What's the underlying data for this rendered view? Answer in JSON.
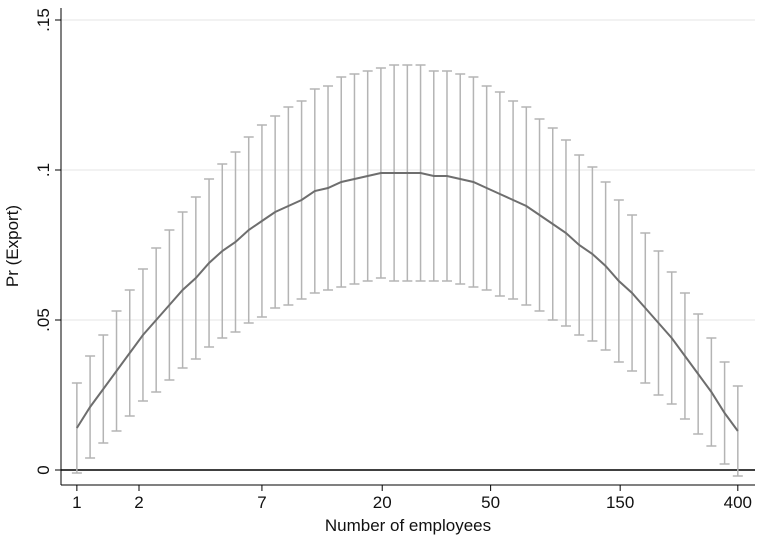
{
  "chart_data": {
    "type": "errorbar-line",
    "xlabel": "Number of employees",
    "ylabel": "Pr (Export)",
    "x": [
      0,
      1,
      2,
      3,
      4,
      5,
      6,
      7,
      8,
      9,
      10,
      11,
      12,
      13,
      14,
      15,
      16,
      17,
      18,
      19,
      20,
      21,
      22,
      23,
      24,
      25,
      26,
      27,
      28,
      29,
      30,
      31,
      32,
      33,
      34,
      35,
      36,
      37,
      38,
      39,
      40,
      41,
      42,
      43,
      44,
      45,
      46,
      47,
      48,
      49,
      50
    ],
    "values": [
      0.014,
      0.021,
      0.027,
      0.033,
      0.039,
      0.045,
      0.05,
      0.055,
      0.06,
      0.064,
      0.069,
      0.073,
      0.076,
      0.08,
      0.083,
      0.086,
      0.088,
      0.09,
      0.093,
      0.094,
      0.096,
      0.097,
      0.098,
      0.099,
      0.099,
      0.099,
      0.099,
      0.098,
      0.098,
      0.097,
      0.096,
      0.094,
      0.092,
      0.09,
      0.088,
      0.085,
      0.082,
      0.079,
      0.075,
      0.072,
      0.068,
      0.063,
      0.059,
      0.054,
      0.049,
      0.044,
      0.038,
      0.032,
      0.026,
      0.019,
      0.013
    ],
    "errors": [
      0.015,
      0.017,
      0.018,
      0.02,
      0.021,
      0.022,
      0.024,
      0.025,
      0.026,
      0.027,
      0.028,
      0.029,
      0.03,
      0.031,
      0.032,
      0.032,
      0.033,
      0.033,
      0.034,
      0.034,
      0.035,
      0.035,
      0.035,
      0.035,
      0.036,
      0.036,
      0.036,
      0.035,
      0.035,
      0.035,
      0.035,
      0.034,
      0.034,
      0.033,
      0.033,
      0.032,
      0.032,
      0.031,
      0.03,
      0.029,
      0.028,
      0.027,
      0.026,
      0.025,
      0.024,
      0.022,
      0.021,
      0.02,
      0.018,
      0.017,
      0.015
    ],
    "line_color": "#6e6e6e",
    "bar_color": "#b4b4b4",
    "xlim": [
      -1.2,
      51.3
    ],
    "xticks": [
      {
        "value": 0,
        "label": "1"
      },
      {
        "value": 4.7,
        "label": "2"
      },
      {
        "value": 14,
        "label": "7"
      },
      {
        "value": 23.1,
        "label": "20"
      },
      {
        "value": 31.3,
        "label": "50"
      },
      {
        "value": 41.1,
        "label": "150"
      },
      {
        "value": 50,
        "label": "400"
      }
    ],
    "ylim": [
      -0.005,
      0.154
    ],
    "yticks": [
      0,
      {
        "value": 0.05,
        "label": ".05"
      },
      {
        "value": 0.1,
        "label": ".1"
      },
      {
        "value": 0.15,
        "label": ".15"
      }
    ],
    "grid": true,
    "reference_line": 0
  }
}
